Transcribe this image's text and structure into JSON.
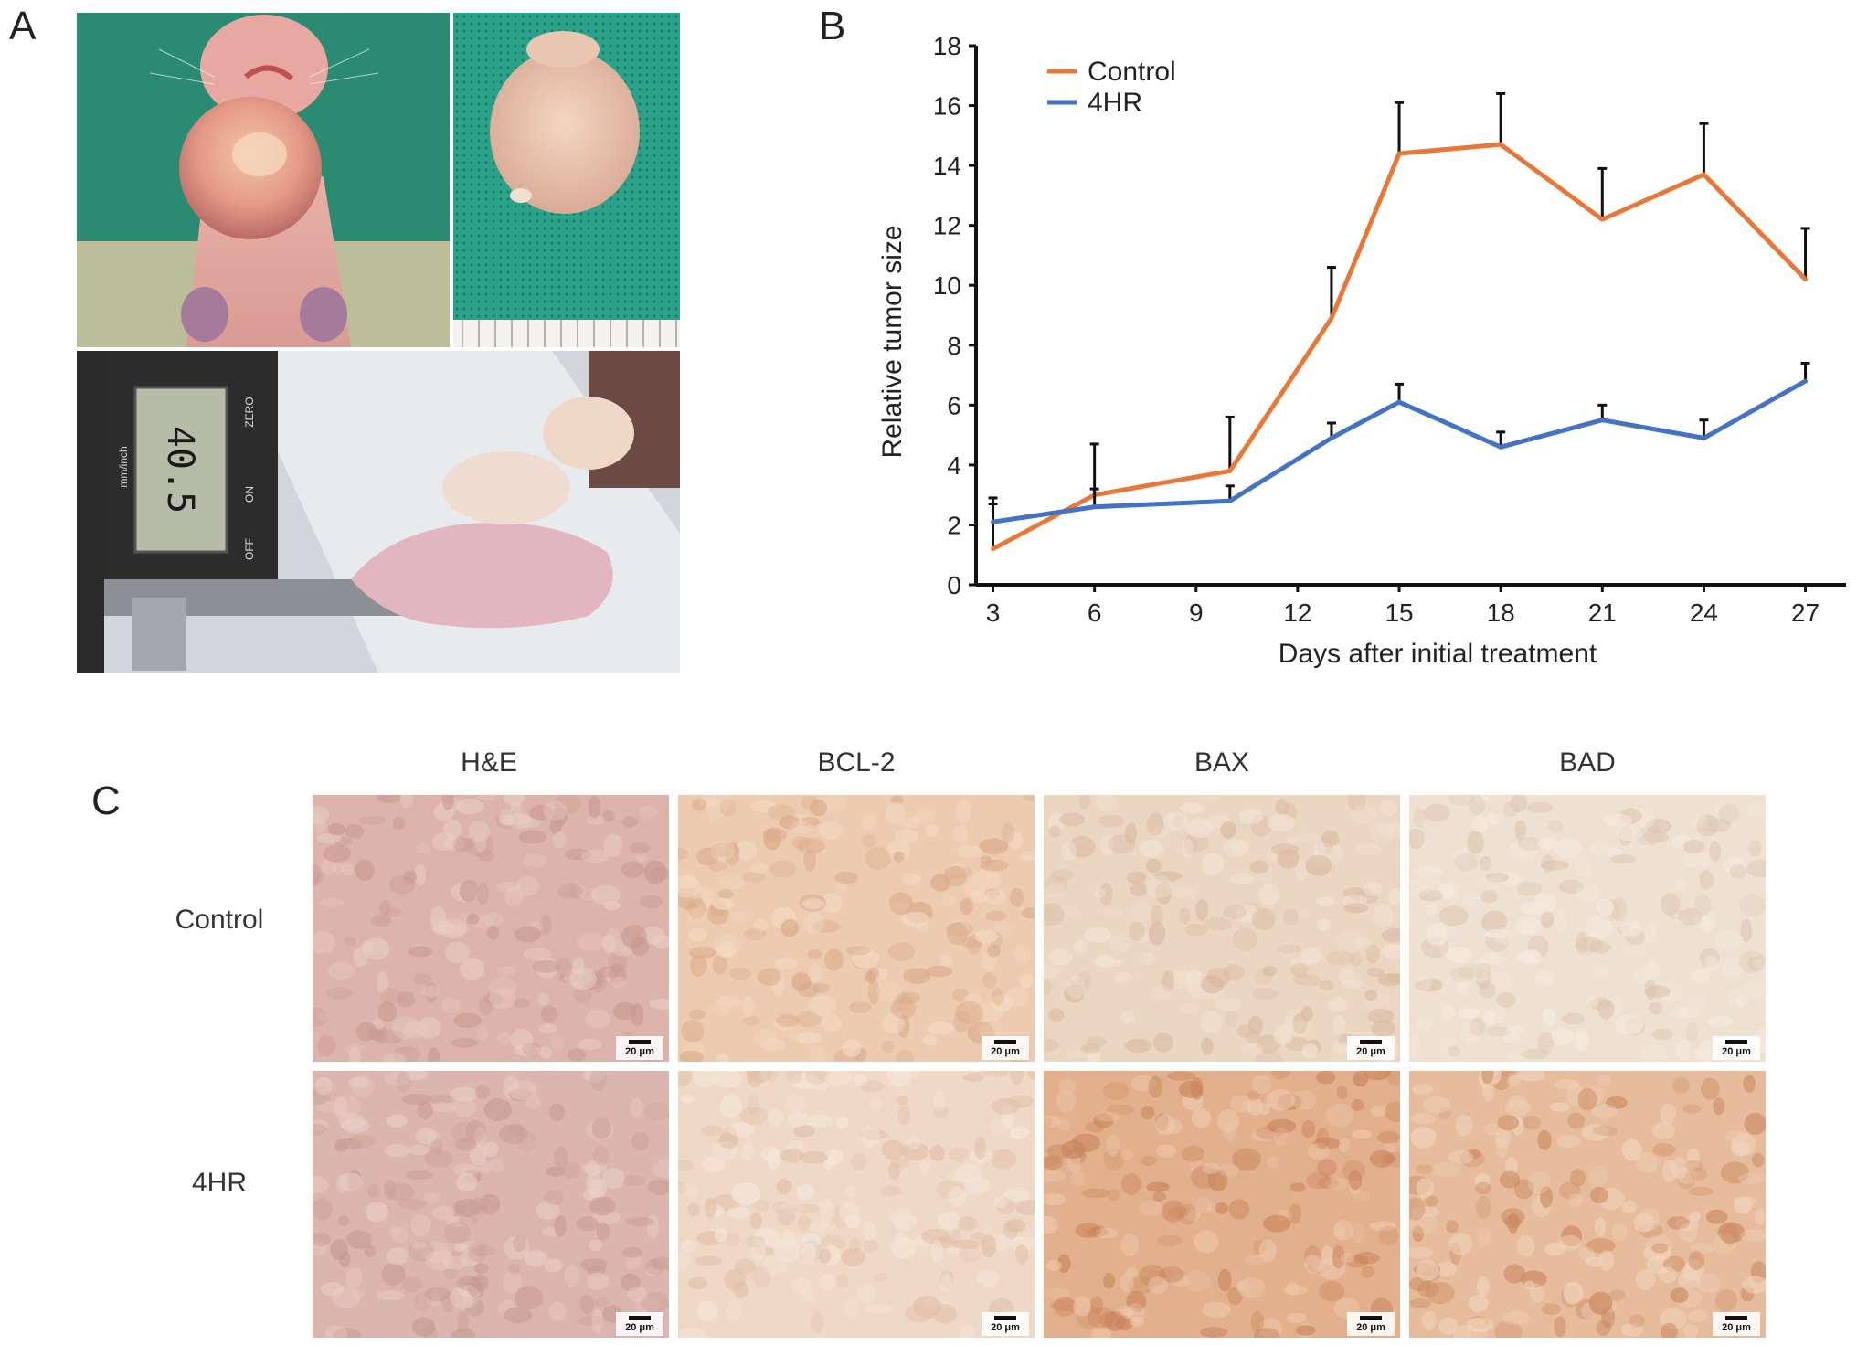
{
  "panels": {
    "a": {
      "letter": "A",
      "caliper_readout": "40.5",
      "caliper_unit": "mm/inch",
      "caliper_zero": "ZERO",
      "caliper_on": "ON",
      "caliper_off": "OFF"
    },
    "b": {
      "letter": "B"
    },
    "c": {
      "letter": "C",
      "columns": [
        "H&E",
        "BCL-2",
        "BAX",
        "BAD"
      ],
      "rows": [
        "Control",
        "4HR"
      ],
      "scale_bar": "20 μm"
    }
  },
  "chart_data": {
    "type": "line",
    "xlabel": "Days after initial treatment",
    "ylabel": "Relative tumor size",
    "x": [
      3,
      6,
      9,
      12,
      15,
      18,
      21,
      24,
      27
    ],
    "ylim": [
      0,
      18
    ],
    "yticks": [
      0,
      2,
      4,
      6,
      8,
      10,
      12,
      14,
      16,
      18
    ],
    "grid": false,
    "legend": "top-left",
    "series": [
      {
        "name": "Control",
        "color": "#e8773a",
        "x": [
          3,
          6,
          10,
          13,
          15,
          18,
          21,
          24,
          27
        ],
        "y": [
          1.2,
          3.0,
          3.8,
          8.9,
          14.4,
          14.7,
          12.2,
          13.7,
          10.2
        ],
        "err": [
          1.7,
          1.7,
          1.8,
          1.7,
          1.7,
          1.7,
          1.7,
          1.7,
          1.7
        ]
      },
      {
        "name": "4HR",
        "color": "#4472c4",
        "x": [
          3,
          6,
          10,
          13,
          15,
          18,
          21,
          24,
          27
        ],
        "y": [
          2.1,
          2.6,
          2.8,
          4.9,
          6.1,
          4.6,
          5.5,
          4.9,
          6.8
        ],
        "err": [
          0.6,
          0.6,
          0.5,
          0.5,
          0.6,
          0.5,
          0.5,
          0.6,
          0.6
        ]
      }
    ]
  }
}
